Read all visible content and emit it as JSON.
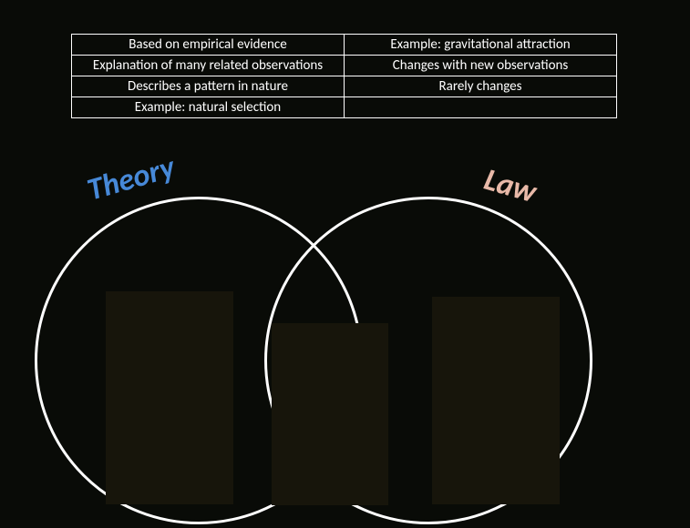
{
  "background_color": "#090b07",
  "table": {
    "border_color": "#ffffff",
    "text_color": "#ffffff",
    "font_size": 15,
    "rows": [
      [
        "Based on empirical evidence",
        "Example: gravitational attraction"
      ],
      [
        "Explanation of many related observations",
        "Changes with new observations"
      ],
      [
        "Describes a pattern in nature",
        "Rarely changes"
      ],
      [
        "Example: natural selection",
        ""
      ]
    ]
  },
  "venn": {
    "circle_stroke": "#ffffff",
    "circle_stroke_width": 3,
    "left_label": {
      "text": "Theory",
      "color": "#4789d8",
      "font_size": 34,
      "rotation_deg": -16
    },
    "right_label": {
      "text": "Law",
      "color": "#e8b9a8",
      "font_size": 34,
      "rotation_deg": 16
    },
    "dropzone_fill": "#17150b"
  }
}
